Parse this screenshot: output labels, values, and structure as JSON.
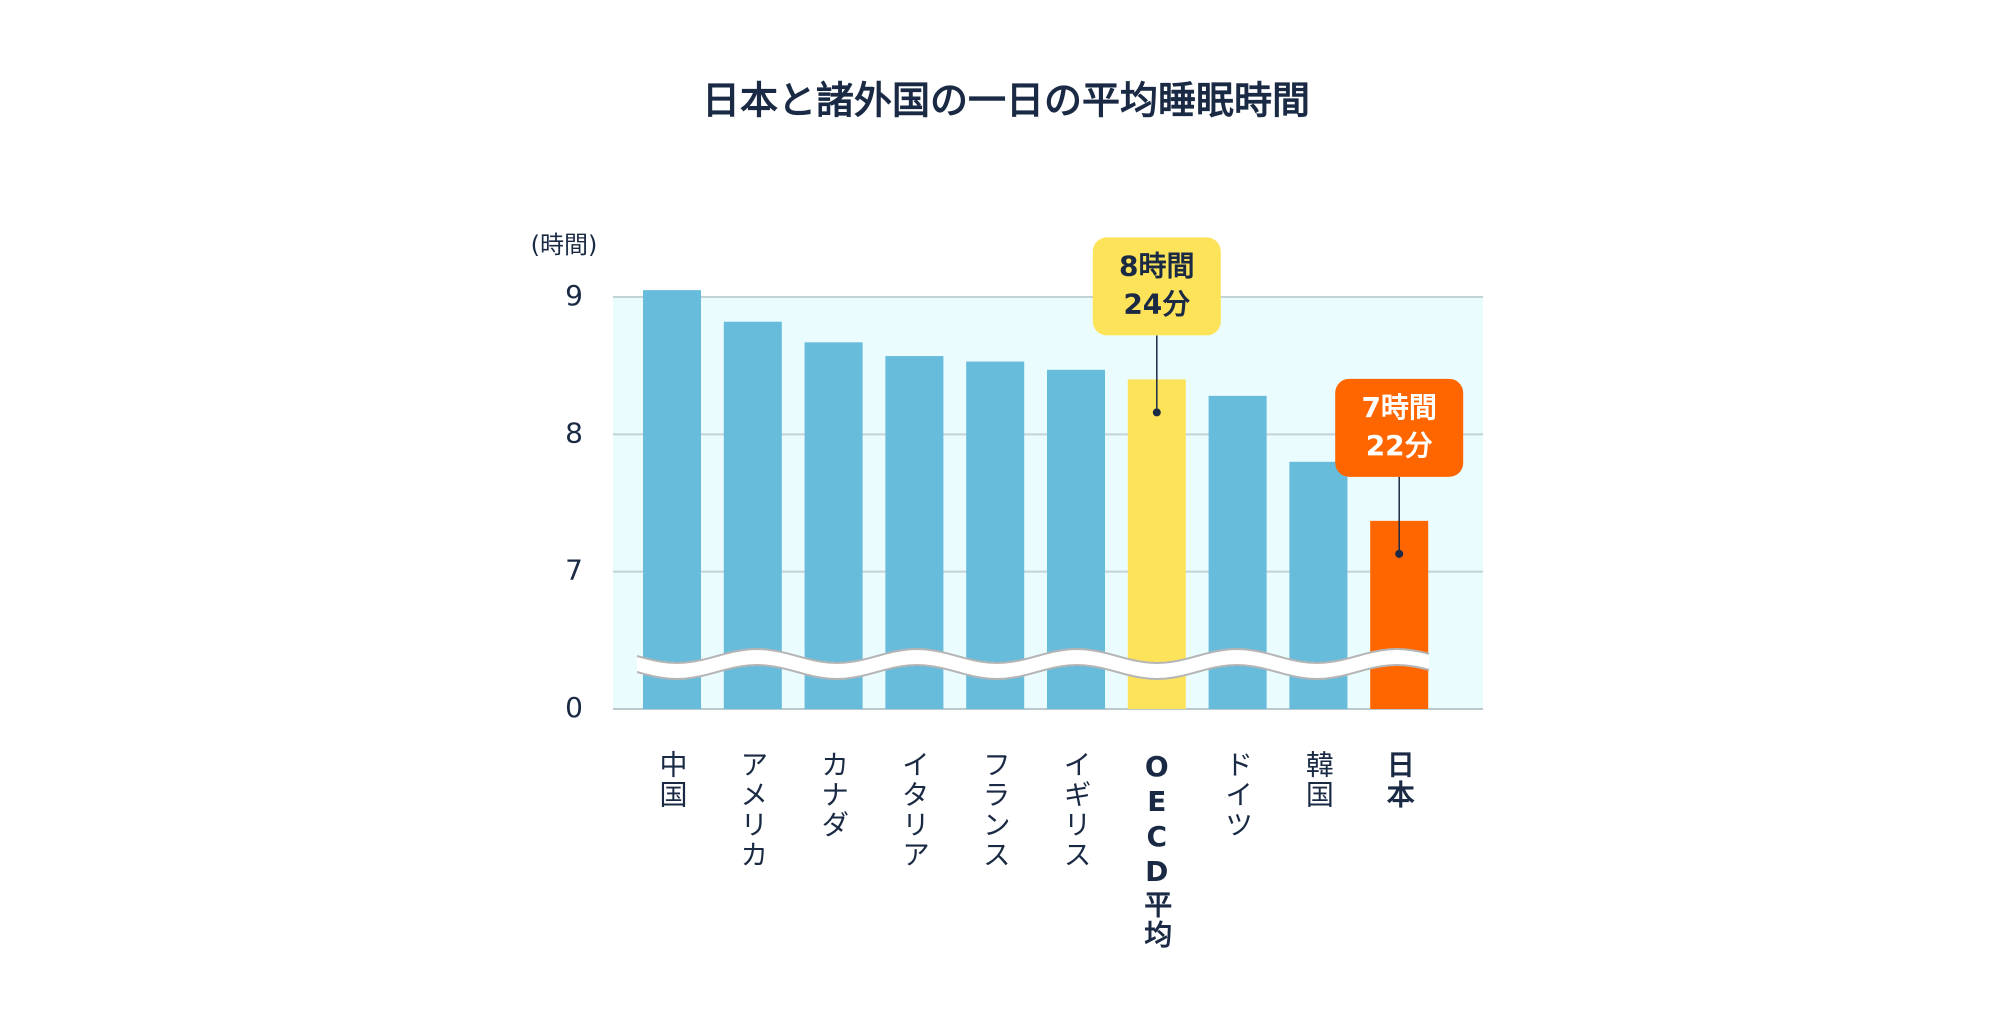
{
  "chart_data": {
    "type": "bar",
    "title": "日本と諸外国の一日の平均睡眠時間",
    "y_label": "(時間)",
    "categories": [
      "中国",
      "アメリカ",
      "カナダ",
      "イタリア",
      "フランス",
      "イギリス",
      "OECD平均",
      "ドイツ",
      "韓国",
      "日本"
    ],
    "values": [
      9.05,
      8.82,
      8.67,
      8.57,
      8.53,
      8.47,
      8.4,
      8.28,
      7.8,
      7.37
    ],
    "value_labels": [
      null,
      null,
      null,
      null,
      null,
      null,
      [
        "8時間",
        "24分"
      ],
      null,
      null,
      [
        "7時間",
        "22分"
      ]
    ],
    "colors": [
      "#67bbdb",
      "#67bbdb",
      "#67bbdb",
      "#67bbdb",
      "#67bbdb",
      "#67bbdb",
      "#fde35a",
      "#67bbdb",
      "#67bbdb",
      "#ff6600"
    ],
    "ylim": [
      0,
      9
    ],
    "axis_break": [
      0,
      6
    ],
    "yticks": [
      0,
      7,
      8,
      9
    ],
    "grid": true
  }
}
